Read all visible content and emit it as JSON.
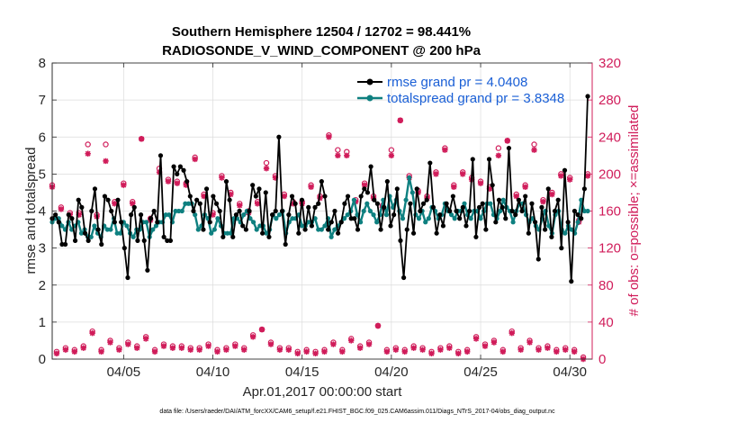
{
  "chart_data": {
    "type": "line",
    "title": "Southern Hemisphere 12504 / 12702 = 98.441%",
    "subtitle": "RADIOSONDE_V_WIND_COMPONENT @ 200 hPa",
    "xlabel": "Apr.01,2017 00:00:00 start",
    "ylabel": "rmse and totalspread",
    "ylabel_right": "# of obs: o=possible; ×=assimilated",
    "xlim": [
      1,
      31.25
    ],
    "ylim": [
      0,
      8
    ],
    "ylim_right": [
      0,
      320
    ],
    "x_ticks": [
      5,
      10,
      15,
      20,
      25,
      30
    ],
    "x_tick_labels": [
      "04/05",
      "04/10",
      "04/15",
      "04/20",
      "04/25",
      "04/30"
    ],
    "y_ticks": [
      0,
      1,
      2,
      3,
      4,
      5,
      6,
      7,
      8
    ],
    "y_tick_labels": [
      "0",
      "1",
      "2",
      "3",
      "4",
      "5",
      "6",
      "7",
      "8"
    ],
    "y2_ticks": [
      0,
      40,
      80,
      120,
      160,
      200,
      240,
      280,
      320
    ],
    "y2_tick_labels": [
      "0",
      "40",
      "80",
      "120",
      "160",
      "200",
      "240",
      "280",
      "320"
    ],
    "legend_position": "top-right",
    "series": [
      {
        "name": "rmse grand pr = 4.0408",
        "color": "#000000",
        "axis": "left",
        "marker": "dot",
        "values": [
          3.8,
          3.9,
          3.7,
          3.1,
          3.1,
          3.9,
          3.8,
          3.2,
          4.3,
          4.1,
          3.4,
          3.2,
          4.0,
          4.6,
          3.5,
          3.1,
          4.4,
          4.3,
          4.0,
          3.7,
          4.3,
          3.7,
          3.0,
          2.2,
          3.9,
          4.1,
          3.2,
          3.9,
          3.2,
          2.4,
          3.8,
          4.0,
          3.7,
          5.5,
          3.3,
          3.2,
          3.2,
          5.2,
          5.0,
          5.2,
          5.1,
          4.8,
          4.4,
          4.0,
          4.3,
          4.2,
          3.5,
          4.6,
          3.7,
          4.4,
          4.2,
          4.0,
          3.3,
          4.8,
          4.3,
          3.3,
          3.9,
          4.0,
          3.6,
          3.5,
          4.0,
          4.7,
          4.4,
          4.6,
          3.4,
          4.5,
          3.3,
          3.9,
          4.0,
          6.0,
          4.0,
          3.1,
          3.9,
          4.4,
          4.2,
          3.4,
          4.3,
          3.5,
          4.1,
          3.6,
          4.1,
          4.2,
          4.8,
          4.4,
          3.5,
          3.7,
          4.0,
          3.4,
          3.7,
          4.2,
          4.4,
          3.8,
          3.8,
          3.5,
          4.4,
          4.6,
          4.5,
          5.2,
          4.3,
          4.2,
          3.5,
          4.1,
          4.8,
          3.6,
          3.9,
          4.6,
          3.2,
          2.2,
          3.5,
          4.2,
          3.4,
          4.6,
          4.0,
          4.2,
          4.3,
          5.3,
          4.1,
          3.4,
          3.9,
          3.6,
          4.2,
          4.0,
          4.4,
          4.0,
          3.8,
          4.1,
          3.6,
          4.0,
          5.4,
          3.3,
          4.1,
          4.2,
          3.5,
          5.4,
          4.7,
          3.7,
          4.3,
          4.1,
          3.8,
          5.7,
          4.0,
          3.9,
          4.3,
          4.0,
          4.4,
          3.4,
          4.2,
          3.7,
          2.7,
          4.1,
          3.5,
          4.6,
          3.3,
          4.0,
          4.3,
          3.0,
          5.1,
          3.7,
          2.1,
          4.0,
          3.9,
          3.8,
          4.6,
          7.1
        ]
      },
      {
        "name": "totalspread grand pr = 3.8348",
        "color": "#0e8080",
        "axis": "left",
        "marker": "dot",
        "values": [
          3.7,
          3.8,
          3.8,
          3.6,
          3.5,
          3.7,
          3.5,
          3.6,
          3.7,
          3.4,
          3.5,
          3.3,
          3.3,
          3.6,
          3.4,
          3.3,
          3.6,
          3.5,
          3.5,
          3.8,
          3.4,
          3.4,
          3.7,
          3.6,
          3.4,
          3.3,
          3.5,
          3.5,
          3.7,
          3.7,
          3.3,
          3.5,
          3.6,
          3.7,
          3.7,
          3.9,
          3.9,
          3.7,
          4.0,
          4.0,
          4.0,
          4.2,
          4.2,
          4.2,
          3.9,
          3.5,
          3.6,
          3.9,
          3.8,
          3.4,
          3.5,
          3.8,
          3.6,
          3.4,
          3.4,
          3.4,
          3.8,
          3.8,
          3.7,
          3.9,
          4.0,
          3.8,
          3.7,
          3.5,
          3.6,
          3.6,
          3.4,
          3.5,
          3.9,
          3.8,
          3.9,
          4.0,
          3.4,
          3.7,
          3.8,
          3.8,
          3.9,
          3.6,
          3.6,
          3.7,
          3.7,
          3.8,
          3.5,
          3.5,
          3.6,
          3.8,
          3.3,
          3.5,
          3.6,
          3.7,
          3.8,
          3.9,
          4.0,
          4.3,
          3.9,
          3.7,
          4.0,
          4.2,
          4.0,
          3.9,
          3.7,
          3.9,
          4.3,
          3.9,
          4.4,
          4.1,
          4.3,
          4.0,
          3.8,
          4.3,
          4.9,
          4.5,
          3.9,
          3.8,
          4.0,
          3.7,
          3.8,
          4.1,
          4.0,
          3.8,
          3.9,
          4.2,
          4.0,
          3.9,
          3.8,
          4.0,
          4.0,
          4.2,
          3.9,
          3.8,
          4.0,
          4.0,
          3.8,
          4.0,
          4.2,
          4.2,
          3.9,
          3.8,
          4.0,
          4.3,
          4.1,
          4.0,
          3.7,
          4.0,
          4.2,
          4.2,
          3.9,
          3.7,
          3.8,
          3.6,
          3.5,
          3.8,
          4.0,
          3.6,
          3.4,
          3.9,
          4.0,
          3.5,
          3.4,
          3.6,
          3.5,
          3.4,
          3.7,
          4.3,
          4.0,
          4.0
        ]
      },
      {
        "name": "obs possible (o)",
        "color": "#d01c5a",
        "axis": "right",
        "marker": "circle",
        "x": [
          1.0,
          1.5,
          2.0,
          2.5,
          3.0,
          3.5,
          4.0,
          4.5,
          5.0,
          5.5,
          6.0,
          6.5,
          7.0,
          7.5,
          8.0,
          8.5,
          9.0,
          9.5,
          10.0,
          10.5,
          11.0,
          11.5,
          12.0,
          12.5,
          13.0,
          13.5,
          14.0,
          14.5,
          15.0,
          15.5,
          16.0,
          16.5,
          17.0,
          17.5,
          18.0,
          18.5,
          19.0,
          19.5,
          20.0,
          20.5,
          21.0,
          21.5,
          22.0,
          22.5,
          23.0,
          23.5,
          24.0,
          24.5,
          25.0,
          25.5,
          26.0,
          26.5,
          27.0,
          27.5,
          28.0,
          28.5,
          29.0,
          29.5,
          30.0,
          30.5,
          31.0,
          1.25,
          1.75,
          2.25,
          2.75,
          3.25,
          3.75,
          4.25,
          4.75,
          5.25,
          5.75,
          6.25,
          6.75,
          7.25,
          7.75,
          8.25,
          8.75,
          9.25,
          9.75,
          10.25,
          10.75,
          11.25,
          11.75,
          12.25,
          12.75,
          13.25,
          13.75,
          14.25,
          14.75,
          15.25,
          15.75,
          16.25,
          16.75,
          17.25,
          17.75,
          18.25,
          18.75,
          19.25,
          19.75,
          20.25,
          20.75,
          21.25,
          21.75,
          22.25,
          22.75,
          23.25,
          23.75,
          24.25,
          24.75,
          25.25,
          25.75,
          26.25,
          26.75,
          27.25,
          27.75,
          28.25,
          28.75,
          29.25,
          29.75,
          30.25,
          30.75
        ],
        "values": [
          188,
          164,
          158,
          158,
          232,
          156,
          232,
          170,
          190,
          170,
          238,
          152,
          206,
          194,
          192,
          190,
          218,
          178,
          158,
          198,
          180,
          168,
          160,
          170,
          212,
          198,
          178,
          170,
          170,
          188,
          176,
          242,
          226,
          224,
          172,
          190,
          176,
          166,
          226,
          258,
          198,
          182,
          176,
          202,
          228,
          188,
          202,
          196,
          192,
          186,
          228,
          236,
          178,
          188,
          232,
          172,
          180,
          200,
          196,
          150,
          200,
          8,
          12,
          10,
          14,
          30,
          10,
          20,
          12,
          18,
          14,
          24,
          10,
          16,
          14,
          14,
          12,
          12,
          16,
          10,
          12,
          16,
          12,
          26,
          32,
          18,
          12,
          12,
          8,
          10,
          8,
          10,
          18,
          10,
          22,
          14,
          18,
          36,
          10,
          12,
          10,
          14,
          12,
          8,
          12,
          14,
          8,
          10,
          24,
          16,
          20,
          10,
          30,
          12,
          20,
          12,
          14,
          10,
          12,
          10,
          2
        ]
      },
      {
        "name": "obs assimilated (×)",
        "color": "#d01c5a",
        "axis": "right",
        "marker": "star",
        "x": [
          1.0,
          1.5,
          2.0,
          2.5,
          3.0,
          3.5,
          4.0,
          4.5,
          5.0,
          5.5,
          6.0,
          6.5,
          7.0,
          7.5,
          8.0,
          8.5,
          9.0,
          9.5,
          10.0,
          10.5,
          11.0,
          11.5,
          12.0,
          12.5,
          13.0,
          13.5,
          14.0,
          14.5,
          15.0,
          15.5,
          16.0,
          16.5,
          17.0,
          17.5,
          18.0,
          18.5,
          19.0,
          19.5,
          20.0,
          20.5,
          21.0,
          21.5,
          22.0,
          22.5,
          23.0,
          23.5,
          24.0,
          24.5,
          25.0,
          25.5,
          26.0,
          26.5,
          27.0,
          27.5,
          28.0,
          28.5,
          29.0,
          29.5,
          30.0,
          30.5,
          31.0,
          1.25,
          1.75,
          2.25,
          2.75,
          3.25,
          3.75,
          4.25,
          4.75,
          5.25,
          5.75,
          6.25,
          6.75,
          7.25,
          7.75,
          8.25,
          8.75,
          9.25,
          9.75,
          10.25,
          10.75,
          11.25,
          11.75,
          12.25,
          12.75,
          13.25,
          13.75,
          14.25,
          14.75,
          15.25,
          15.75,
          16.25,
          16.75,
          17.25,
          17.75,
          18.25,
          18.75,
          19.25,
          19.75,
          20.25,
          20.75,
          21.25,
          21.75,
          22.25,
          22.75,
          23.25,
          23.75,
          24.25,
          24.75,
          25.25,
          25.75,
          26.25,
          26.75,
          27.25,
          27.75,
          28.25,
          28.75,
          29.25,
          29.75,
          30.25,
          30.75
        ],
        "values": [
          186,
          162,
          156,
          156,
          222,
          154,
          214,
          168,
          188,
          168,
          238,
          150,
          202,
          192,
          190,
          188,
          216,
          176,
          156,
          196,
          178,
          166,
          158,
          168,
          206,
          196,
          176,
          168,
          168,
          186,
          174,
          240,
          220,
          220,
          170,
          188,
          174,
          164,
          220,
          258,
          196,
          180,
          174,
          200,
          226,
          186,
          200,
          194,
          190,
          184,
          220,
          236,
          176,
          186,
          226,
          170,
          178,
          198,
          194,
          148,
          198,
          6,
          10,
          8,
          12,
          28,
          8,
          18,
          10,
          16,
          12,
          22,
          8,
          14,
          12,
          12,
          10,
          10,
          14,
          8,
          10,
          14,
          10,
          24,
          32,
          16,
          10,
          10,
          6,
          8,
          6,
          8,
          16,
          8,
          20,
          12,
          16,
          36,
          8,
          10,
          8,
          12,
          10,
          6,
          10,
          12,
          6,
          8,
          22,
          14,
          18,
          8,
          28,
          10,
          18,
          10,
          12,
          8,
          10,
          8,
          0
        ]
      }
    ]
  },
  "footer": "data file: /Users/raeder/DAI/ATM_forcXX/CAM6_setup/f.e21.FHIST_BGC.f09_025.CAM6assim.011/Diags_NTrS_2017-04/obs_diag_output.nc"
}
